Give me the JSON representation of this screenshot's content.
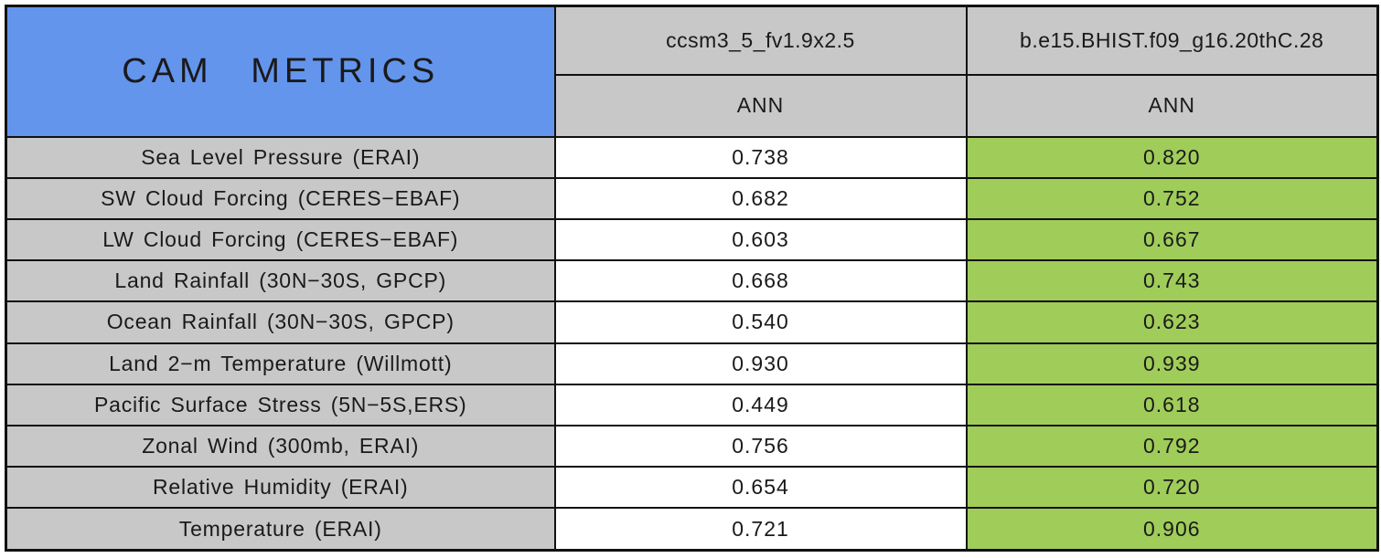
{
  "table": {
    "title": "CAM METRICS",
    "columns": [
      {
        "model": "ccsm3_5_fv1.9x2.5",
        "season": "ANN"
      },
      {
        "model": "b.e15.BHIST.f09_g16.20thC.28",
        "season": "ANN"
      }
    ],
    "rows": [
      {
        "metric": "Sea Level Pressure (ERAI)",
        "values": [
          "0.738",
          "0.820"
        ]
      },
      {
        "metric": "SW Cloud Forcing (CERES−EBAF)",
        "values": [
          "0.682",
          "0.752"
        ]
      },
      {
        "metric": "LW Cloud Forcing (CERES−EBAF)",
        "values": [
          "0.603",
          "0.667"
        ]
      },
      {
        "metric": "Land Rainfall (30N−30S, GPCP)",
        "values": [
          "0.668",
          "0.743"
        ]
      },
      {
        "metric": "Ocean Rainfall (30N−30S, GPCP)",
        "values": [
          "0.540",
          "0.623"
        ]
      },
      {
        "metric": "Land 2−m Temperature (Willmott)",
        "values": [
          "0.930",
          "0.939"
        ]
      },
      {
        "metric": "Pacific Surface Stress (5N−5S,ERS)",
        "values": [
          "0.449",
          "0.618"
        ]
      },
      {
        "metric": "Zonal Wind (300mb, ERAI)",
        "values": [
          "0.756",
          "0.792"
        ]
      },
      {
        "metric": "Relative Humidity (ERAI)",
        "values": [
          "0.654",
          "0.720"
        ]
      },
      {
        "metric": "Temperature (ERAI)",
        "values": [
          "0.721",
          "0.906"
        ]
      }
    ]
  },
  "colors": {
    "title_blue": "#6495ED",
    "cell_gray": "#C8C8C8",
    "highlight_green": "#A0CC5A",
    "value_white": "#FFFFFF",
    "border_black": "#111111"
  },
  "chart_data": {
    "type": "table",
    "title": "CAM METRICS",
    "columns": [
      "ccsm3_5_fv1.9x2.5 (ANN)",
      "b.e15.BHIST.f09_g16.20thC.28 (ANN)"
    ],
    "row_labels": [
      "Sea Level Pressure (ERAI)",
      "SW Cloud Forcing (CERES-EBAF)",
      "LW Cloud Forcing (CERES-EBAF)",
      "Land Rainfall (30N-30S, GPCP)",
      "Ocean Rainfall (30N-30S, GPCP)",
      "Land 2-m Temperature (Willmott)",
      "Pacific Surface Stress (5N-5S,ERS)",
      "Zonal Wind (300mb, ERAI)",
      "Relative Humidity (ERAI)",
      "Temperature (ERAI)"
    ],
    "values": [
      [
        0.738,
        0.82
      ],
      [
        0.682,
        0.752
      ],
      [
        0.603,
        0.667
      ],
      [
        0.668,
        0.743
      ],
      [
        0.54,
        0.623
      ],
      [
        0.93,
        0.939
      ],
      [
        0.449,
        0.618
      ],
      [
        0.756,
        0.792
      ],
      [
        0.654,
        0.72
      ],
      [
        0.721,
        0.906
      ]
    ],
    "highlight": "second column cells shaded green (better/highlighted run)"
  }
}
